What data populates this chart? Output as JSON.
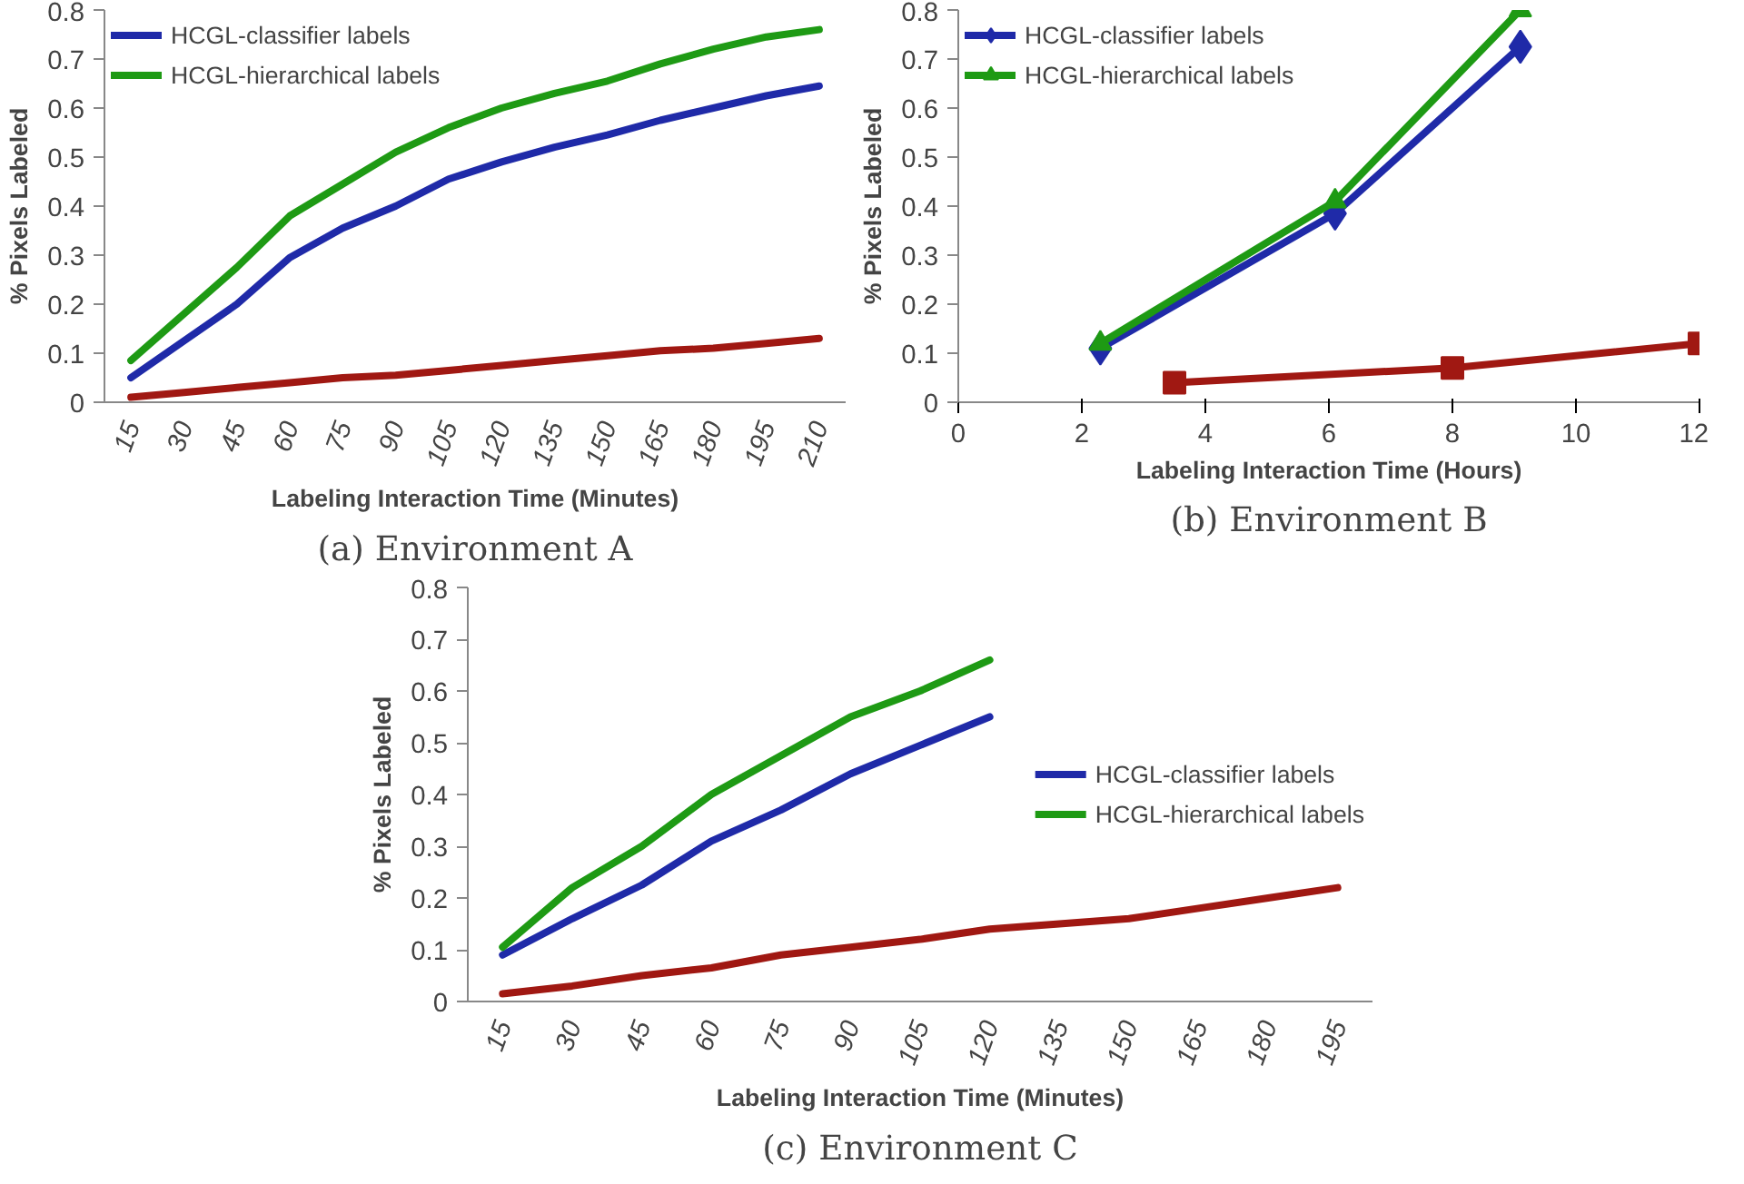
{
  "chart_data": [
    {
      "type": "line",
      "categories": [
        "15",
        "30",
        "45",
        "60",
        "75",
        "90",
        "105",
        "120",
        "135",
        "150",
        "165",
        "180",
        "195",
        "210"
      ],
      "xlabel": "Labeling Interaction Time (Minutes)",
      "ylabel": "% Pixels Labeled",
      "ylim": [
        0,
        0.8
      ],
      "yticks": [
        0,
        0.1,
        0.2,
        0.3,
        0.4,
        0.5,
        0.6,
        0.7,
        0.8
      ],
      "legend": "top left",
      "grid": false,
      "annotations": [
        "(a) Environment A"
      ],
      "series": [
        {
          "name": "HCGL-classifier labels",
          "color": "#1f2aa8",
          "values": [
            0.05,
            0.125,
            0.2,
            0.295,
            0.355,
            0.4,
            0.455,
            0.49,
            0.52,
            0.545,
            0.575,
            0.6,
            0.625,
            0.645
          ]
        },
        {
          "name": "HCGL-hierarchical labels",
          "color": "#1e9a14",
          "values": [
            0.085,
            0.18,
            0.275,
            0.38,
            0.445,
            0.51,
            0.56,
            0.6,
            0.63,
            0.655,
            0.69,
            0.72,
            0.745,
            0.76
          ]
        },
        {
          "color": "#a01812",
          "values": [
            0.01,
            0.02,
            0.03,
            0.04,
            0.05,
            0.055,
            0.065,
            0.075,
            0.085,
            0.095,
            0.105,
            0.11,
            0.12,
            0.13
          ]
        }
      ]
    },
    {
      "type": "line",
      "xlabel": "Labeling Interaction Time (Hours)",
      "ylabel": "% Pixels Labeled",
      "xlim": [
        0,
        12
      ],
      "xticks": [
        0,
        2,
        4,
        6,
        8,
        10,
        12
      ],
      "ylim": [
        0,
        0.8
      ],
      "yticks": [
        0,
        0.1,
        0.2,
        0.3,
        0.4,
        0.5,
        0.6,
        0.7,
        0.8
      ],
      "legend": "top left",
      "grid": false,
      "annotations": [
        "(b) Environment B"
      ],
      "series": [
        {
          "name": "HCGL-classifier labels",
          "color": "#1f2aa8",
          "marker": "diamond",
          "x": [
            2.3,
            6.1,
            9.1
          ],
          "values": [
            0.11,
            0.385,
            0.725
          ]
        },
        {
          "name": "HCGL-hierarchical labels",
          "color": "#1e9a14",
          "marker": "triangle",
          "x": [
            2.3,
            6.1,
            9.1
          ],
          "values": [
            0.12,
            0.41,
            0.8
          ]
        },
        {
          "color": "#a01812",
          "marker": "square",
          "x": [
            3.5,
            8,
            12
          ],
          "values": [
            0.04,
            0.07,
            0.12
          ]
        }
      ]
    },
    {
      "type": "line",
      "categories": [
        "15",
        "30",
        "45",
        "60",
        "75",
        "90",
        "105",
        "120",
        "135",
        "150",
        "165",
        "180",
        "195"
      ],
      "xlabel": "Labeling Interaction Time (Minutes)",
      "ylabel": "% Pixels Labeled",
      "ylim": [
        0,
        0.8
      ],
      "yticks": [
        0,
        0.1,
        0.2,
        0.3,
        0.4,
        0.5,
        0.6,
        0.7,
        0.8
      ],
      "legend": "right",
      "grid": false,
      "annotations": [
        "(c) Environment C"
      ],
      "series": [
        {
          "name": "HCGL-classifier labels",
          "color": "#1f2aa8",
          "values": [
            0.09,
            0.16,
            0.225,
            0.31,
            0.37,
            0.44,
            0.495,
            0.55,
            null,
            null,
            null,
            null,
            null
          ]
        },
        {
          "name": "HCGL-hierarchical labels",
          "color": "#1e9a14",
          "values": [
            0.105,
            0.22,
            0.3,
            0.4,
            0.475,
            0.55,
            0.6,
            0.66,
            null,
            null,
            null,
            null,
            null
          ]
        },
        {
          "color": "#a01812",
          "values": [
            0.015,
            0.03,
            0.05,
            0.065,
            0.09,
            0.105,
            0.12,
            0.14,
            0.15,
            0.16,
            0.18,
            0.2,
            0.22
          ]
        }
      ]
    }
  ]
}
